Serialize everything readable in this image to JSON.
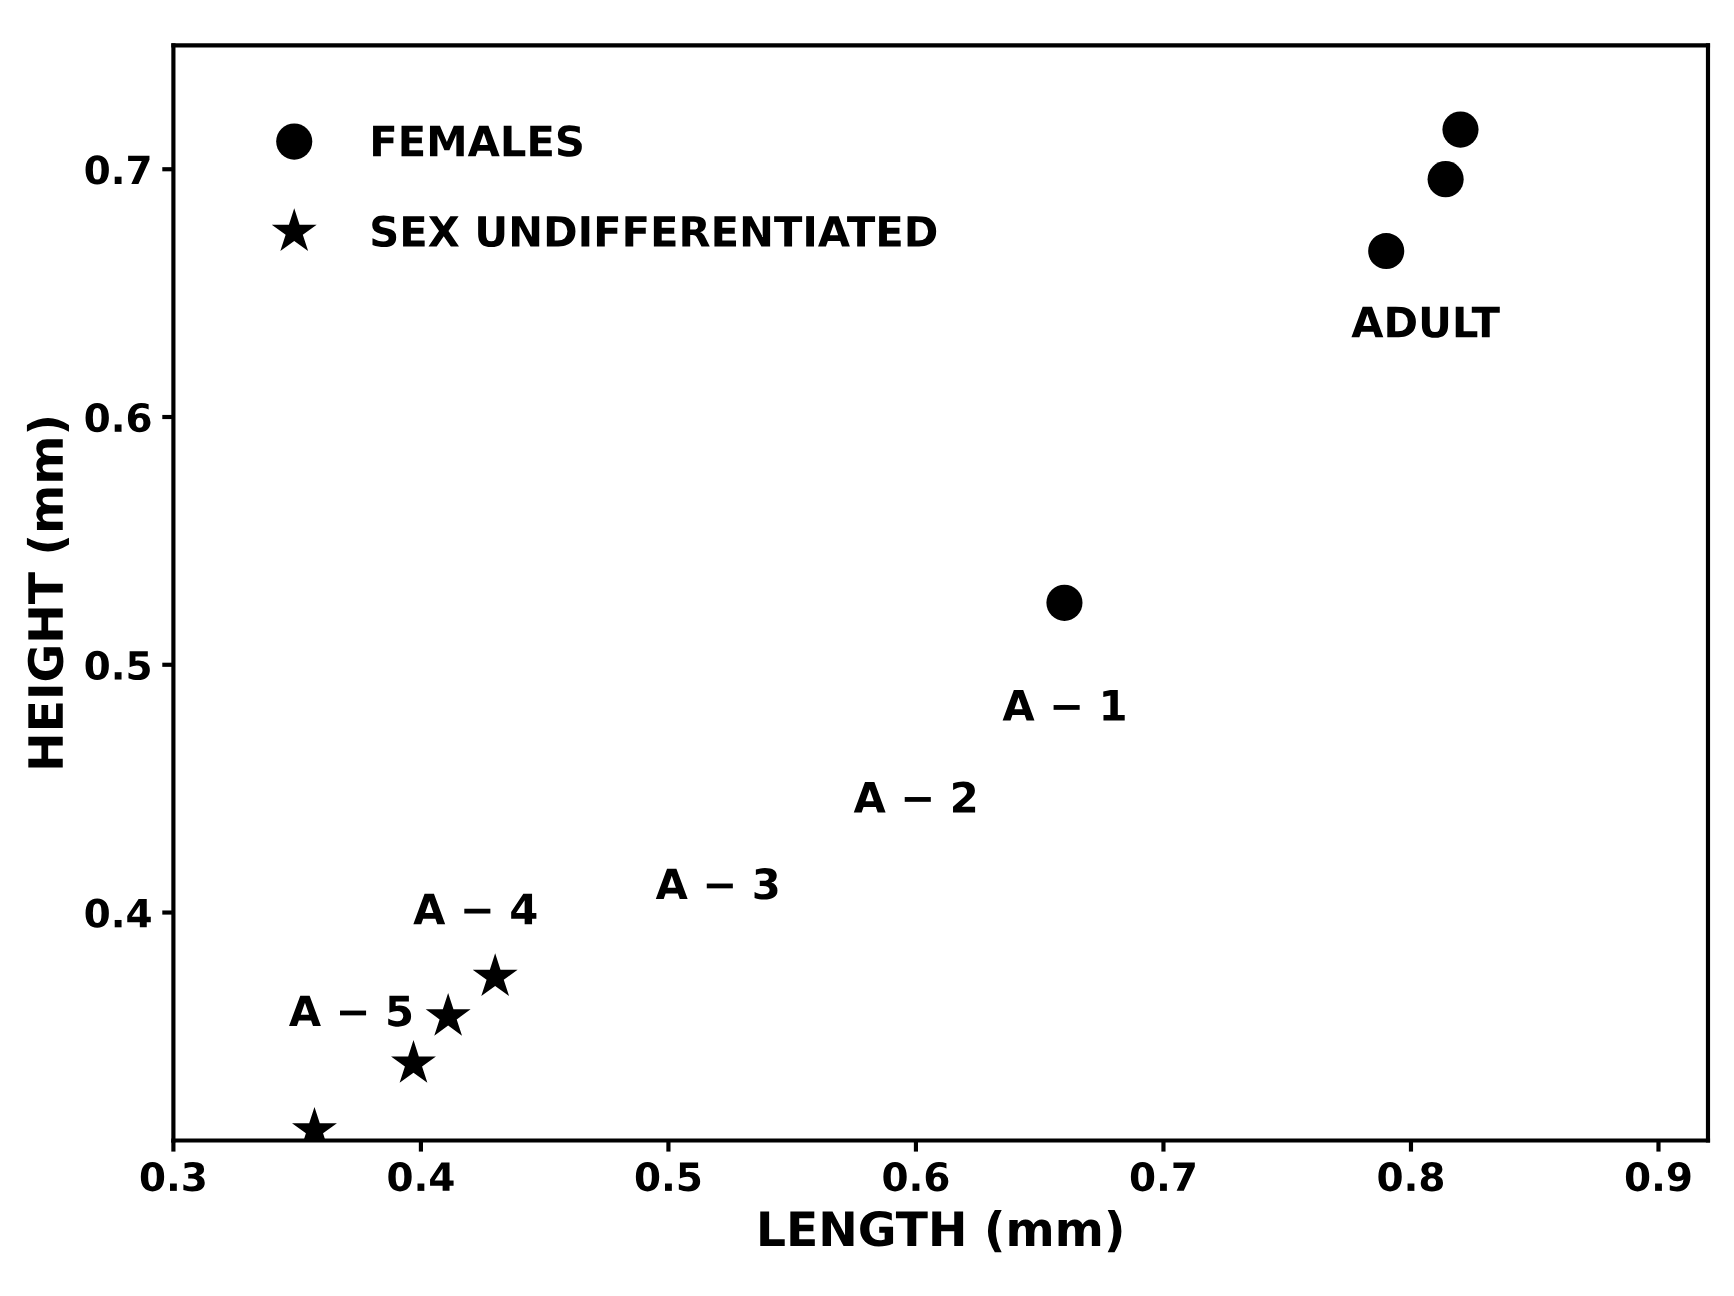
{
  "chart_data": {
    "type": "scatter",
    "xlabel": "LENGTH (mm)",
    "ylabel": "HEIGHT (mm)",
    "series": [
      {
        "name": "FEMALES",
        "color": "#000000",
        "marker": "circle",
        "x": [
          0.66,
          0.79,
          0.814,
          0.82
        ],
        "values": [
          0.525,
          0.667,
          0.696,
          0.716
        ]
      },
      {
        "name": "SEX UNDIFFERENTIATED",
        "color": "#000000",
        "marker": "star",
        "x": [
          0.357,
          0.397,
          0.411,
          0.43
        ],
        "values": [
          0.312,
          0.339,
          0.358,
          0.374
        ]
      }
    ],
    "annotations": [
      "ADULT",
      "A − 1",
      "A − 2",
      "A − 3",
      "A − 4",
      "A − 5"
    ],
    "xlim": [
      0.3,
      0.92
    ],
    "ylim": [
      0.308,
      0.75
    ],
    "xticks": [
      0.3,
      0.4,
      0.5,
      0.6,
      0.7,
      0.8,
      0.9
    ],
    "yticks": [
      0.4,
      0.5,
      0.6,
      0.7
    ],
    "grid": false,
    "legend": "top left"
  }
}
